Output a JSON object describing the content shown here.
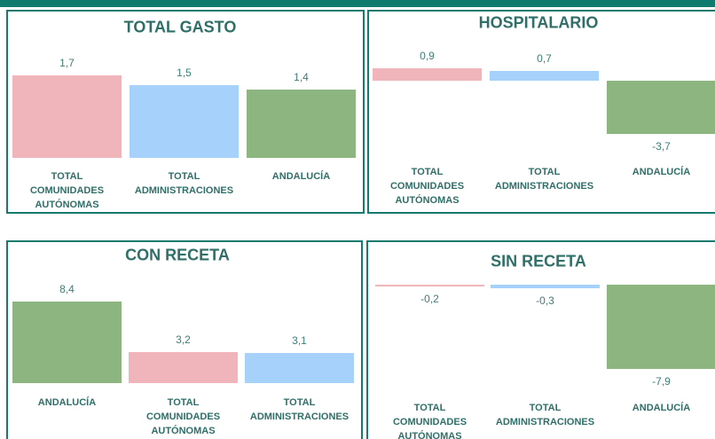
{
  "chart_data": [
    {
      "type": "bar",
      "title": "TOTAL GASTO",
      "categories": [
        "TOTAL COMUNIDADES AUTÓNOMAS",
        "TOTAL ADMINISTRACIONES",
        "ANDALUCÍA"
      ],
      "values": [
        1.7,
        1.5,
        1.4
      ],
      "value_labels": [
        "1,7",
        "1,5",
        "1,4"
      ],
      "colors": [
        "#f0b5ba",
        "#a6d1fb",
        "#8cb57f"
      ]
    },
    {
      "type": "bar",
      "title": "HOSPITALARIO",
      "categories": [
        "TOTAL COMUNIDADES AUTÓNOMAS",
        "TOTAL ADMINISTRACIONES",
        "ANDALUCÍA"
      ],
      "values": [
        0.9,
        0.7,
        -3.7
      ],
      "value_labels": [
        "0,9",
        "0,7",
        "-3,7"
      ],
      "colors": [
        "#f0b5ba",
        "#a6d1fb",
        "#8cb57f"
      ]
    },
    {
      "type": "bar",
      "title": "CON RECETA",
      "categories": [
        "ANDALUCÍA",
        "TOTAL COMUNIDADES AUTÓNOMAS",
        "TOTAL ADMINISTRACIONES"
      ],
      "values": [
        8.4,
        3.2,
        3.1
      ],
      "value_labels": [
        "8,4",
        "3,2",
        "3,1"
      ],
      "colors": [
        "#8cb57f",
        "#f0b5ba",
        "#a6d1fb"
      ]
    },
    {
      "type": "bar",
      "title": "SIN RECETA",
      "categories": [
        "TOTAL COMUNIDADES AUTÓNOMAS",
        "TOTAL ADMINISTRACIONES",
        "ANDALUCÍA"
      ],
      "values": [
        -0.2,
        -0.3,
        -7.9
      ],
      "value_labels": [
        "-0,2",
        "-0,3",
        "-7,9"
      ],
      "colors": [
        "#f0b5ba",
        "#a6d1fb",
        "#8cb57f"
      ]
    }
  ]
}
